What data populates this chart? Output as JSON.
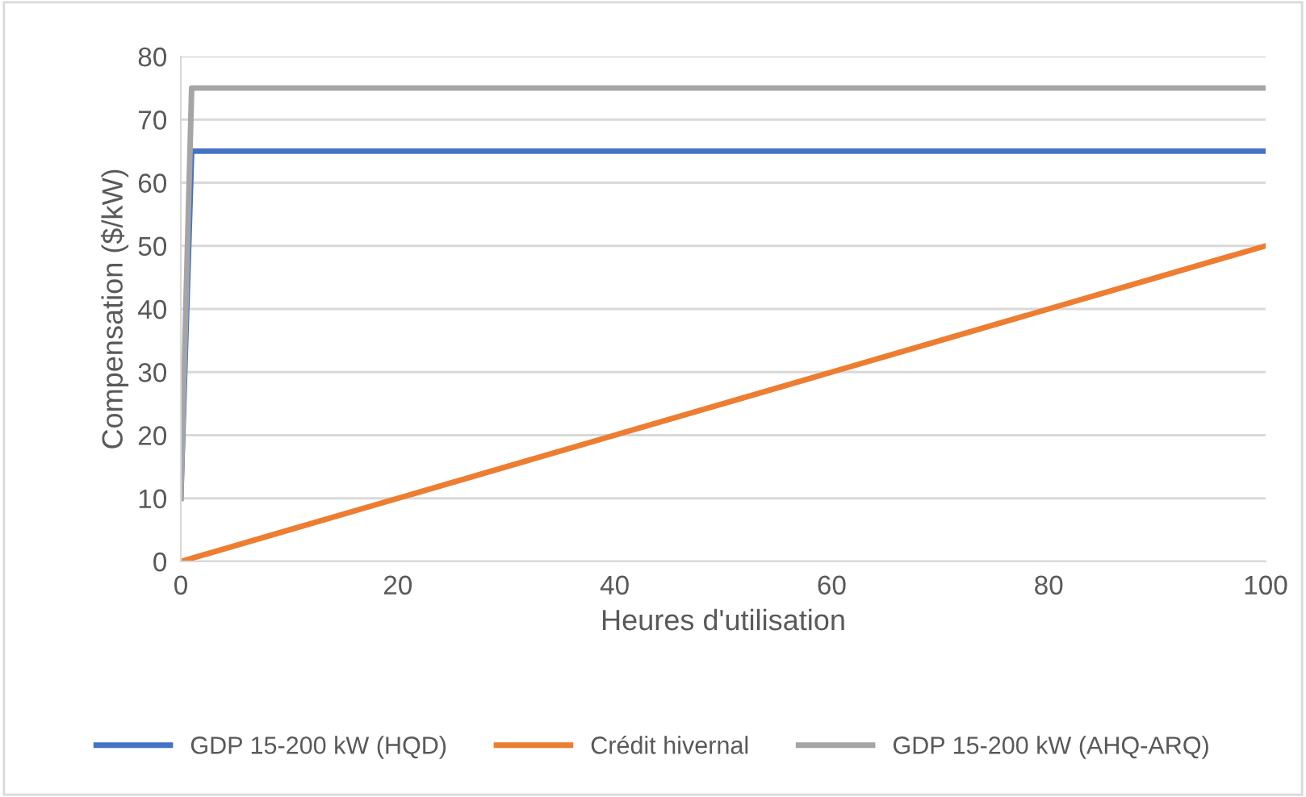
{
  "chart_data": {
    "type": "line",
    "xlabel": "Heures d'utilisation",
    "ylabel": "Compensation ($/kW)",
    "xlim": [
      0,
      100
    ],
    "xticks": [
      0,
      20,
      40,
      60,
      80,
      100
    ],
    "ylim": [
      0,
      80
    ],
    "yticks": [
      0,
      10,
      20,
      30,
      40,
      50,
      60,
      70,
      80
    ],
    "grid": "y",
    "legend": "bottom",
    "marker": "none",
    "line_style": "solid",
    "series": [
      {
        "name": "GDP 15-200 kW (HQD)",
        "color": "#4472c4",
        "x": [
          0,
          1,
          100
        ],
        "values": [
          10,
          65,
          65
        ]
      },
      {
        "name": "Crédit hivernal",
        "color": "#ed7d31",
        "x": [
          0,
          10,
          20,
          30,
          40,
          50,
          60,
          70,
          80,
          90,
          100
        ],
        "values": [
          0,
          5,
          10,
          15,
          20,
          25,
          30,
          35,
          40,
          45,
          50
        ]
      },
      {
        "name": "GDP 15-200 kW (AHQ-ARQ)",
        "color": "#a5a5a5",
        "x": [
          0,
          1,
          100
        ],
        "values": [
          10,
          75,
          75
        ]
      }
    ]
  }
}
